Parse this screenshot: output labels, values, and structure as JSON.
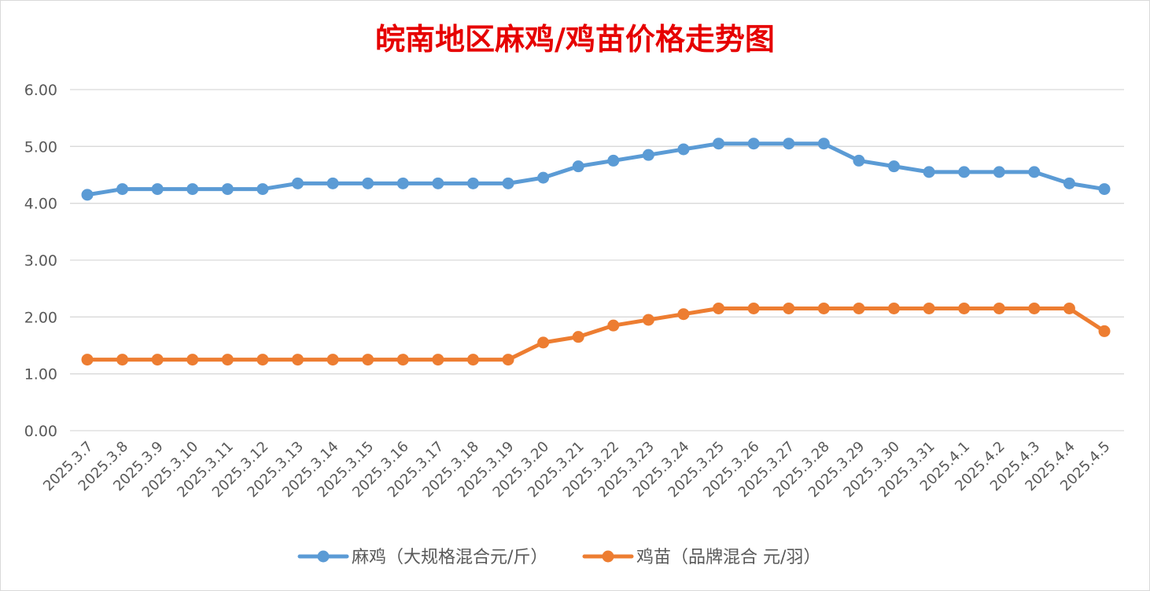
{
  "chart_data": {
    "type": "line",
    "title": "皖南地区麻鸡/鸡苗价格走势图",
    "title_color": "#e60000",
    "categories": [
      "2025.3.7",
      "2025.3.8",
      "2025.3.9",
      "2025.3.10",
      "2025.3.11",
      "2025.3.12",
      "2025.3.13",
      "2025.3.14",
      "2025.3.15",
      "2025.3.16",
      "2025.3.17",
      "2025.3.18",
      "2025.3.19",
      "2025.3.20",
      "2025.3.21",
      "2025.3.22",
      "2025.3.23",
      "2025.3.24",
      "2025.3.25",
      "2025.3.26",
      "2025.3.27",
      "2025.3.28",
      "2025.3.29",
      "2025.3.30",
      "2025.3.31",
      "2025.4.1",
      "2025.4.2",
      "2025.4.3",
      "2025.4.4",
      "2025.4.5"
    ],
    "series": [
      {
        "name": "麻鸡（大规格混合元/斤）",
        "color": "#5b9bd5",
        "values": [
          4.15,
          4.25,
          4.25,
          4.25,
          4.25,
          4.25,
          4.35,
          4.35,
          4.35,
          4.35,
          4.35,
          4.35,
          4.35,
          4.45,
          4.65,
          4.75,
          4.85,
          4.95,
          5.05,
          5.05,
          5.05,
          5.05,
          4.75,
          4.65,
          4.55,
          4.55,
          4.55,
          4.55,
          4.35,
          4.25
        ]
      },
      {
        "name": "鸡苗（品牌混合 元/羽）",
        "color": "#ed7d31",
        "values": [
          1.25,
          1.25,
          1.25,
          1.25,
          1.25,
          1.25,
          1.25,
          1.25,
          1.25,
          1.25,
          1.25,
          1.25,
          1.25,
          1.55,
          1.65,
          1.85,
          1.95,
          2.05,
          2.15,
          2.15,
          2.15,
          2.15,
          2.15,
          2.15,
          2.15,
          2.15,
          2.15,
          2.15,
          2.15,
          1.75
        ]
      }
    ],
    "ylim": [
      0,
      6
    ],
    "yticks": [
      "0.00",
      "1.00",
      "2.00",
      "3.00",
      "4.00",
      "5.00",
      "6.00"
    ],
    "grid": true,
    "legend_position": "bottom"
  }
}
